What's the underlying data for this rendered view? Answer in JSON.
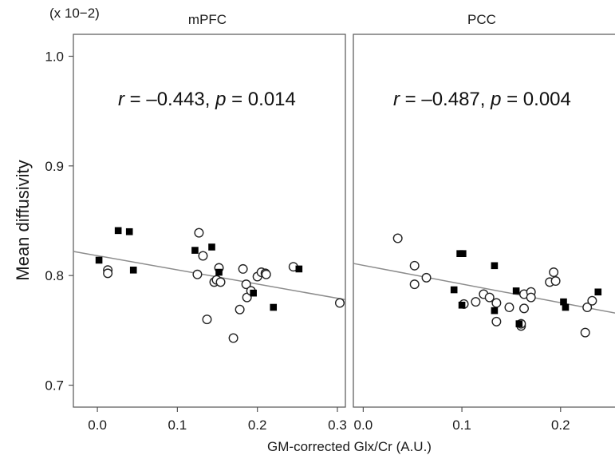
{
  "chart_data": {
    "type": "scatter",
    "ylabel": "Mean diffusivity",
    "xlabel": "GM-corrected Glx/Cr (A.U.)",
    "y_multiplier": "(x 10−2)",
    "ylim": [
      0.68,
      1.02
    ],
    "yticks": [
      0.7,
      0.8,
      0.9,
      1.0
    ],
    "ytick_labels": [
      "0.7",
      "0.8",
      "0.9",
      "1.0"
    ],
    "grid": false,
    "legend": "none",
    "colors": {
      "open": "#222222",
      "filled": "#000000",
      "fit_line": "#8c8c8c"
    },
    "panels": [
      {
        "title": "mPFC",
        "xlim": [
          -0.03,
          0.31
        ],
        "xticks": [
          0.0,
          0.1,
          0.2,
          0.3
        ],
        "xtick_labels": [
          "0.0",
          "0.1",
          "0.2",
          "0.3"
        ],
        "annotation": {
          "r_label": "r",
          "r_value": " = –0.443, ",
          "p_label": "p",
          "p_value": " = 0.014"
        },
        "fit_line": {
          "x": [
            -0.03,
            0.31
          ],
          "y": [
            0.822,
            0.778
          ]
        },
        "series": [
          {
            "marker": "open-circle",
            "points": [
              [
                0.013,
                0.805
              ],
              [
                0.013,
                0.802
              ],
              [
                0.125,
                0.801
              ],
              [
                0.127,
                0.839
              ],
              [
                0.132,
                0.818
              ],
              [
                0.137,
                0.76
              ],
              [
                0.146,
                0.794
              ],
              [
                0.149,
                0.796
              ],
              [
                0.152,
                0.807
              ],
              [
                0.154,
                0.794
              ],
              [
                0.17,
                0.743
              ],
              [
                0.178,
                0.769
              ],
              [
                0.182,
                0.806
              ],
              [
                0.186,
                0.792
              ],
              [
                0.187,
                0.78
              ],
              [
                0.192,
                0.786
              ],
              [
                0.2,
                0.799
              ],
              [
                0.205,
                0.803
              ],
              [
                0.21,
                0.802
              ],
              [
                0.211,
                0.801
              ],
              [
                0.245,
                0.808
              ],
              [
                0.303,
                0.775
              ]
            ]
          },
          {
            "marker": "filled-square",
            "points": [
              [
                0.002,
                0.814
              ],
              [
                0.026,
                0.841
              ],
              [
                0.04,
                0.84
              ],
              [
                0.045,
                0.805
              ],
              [
                0.122,
                0.823
              ],
              [
                0.143,
                0.826
              ],
              [
                0.152,
                0.803
              ],
              [
                0.195,
                0.784
              ],
              [
                0.22,
                0.771
              ],
              [
                0.252,
                0.806
              ]
            ]
          }
        ]
      },
      {
        "title": "PCC",
        "xlim": [
          -0.01,
          0.26
        ],
        "xticks": [
          0.0,
          0.1,
          0.2
        ],
        "xtick_labels": [
          "0.0",
          "0.1",
          "0.2"
        ],
        "annotation": {
          "r_label": "r",
          "r_value": " = –0.487, ",
          "p_label": "p",
          "p_value": " = 0.004"
        },
        "fit_line": {
          "x": [
            -0.01,
            0.26
          ],
          "y": [
            0.811,
            0.765
          ]
        },
        "series": [
          {
            "marker": "open-circle",
            "points": [
              [
                0.035,
                0.834
              ],
              [
                0.052,
                0.809
              ],
              [
                0.052,
                0.792
              ],
              [
                0.064,
                0.798
              ],
              [
                0.102,
                0.774
              ],
              [
                0.114,
                0.776
              ],
              [
                0.122,
                0.783
              ],
              [
                0.128,
                0.78
              ],
              [
                0.135,
                0.775
              ],
              [
                0.135,
                0.758
              ],
              [
                0.148,
                0.771
              ],
              [
                0.16,
                0.754
              ],
              [
                0.16,
                0.756
              ],
              [
                0.163,
                0.783
              ],
              [
                0.163,
                0.77
              ],
              [
                0.17,
                0.785
              ],
              [
                0.17,
                0.78
              ],
              [
                0.189,
                0.794
              ],
              [
                0.193,
                0.803
              ],
              [
                0.195,
                0.795
              ],
              [
                0.225,
                0.748
              ],
              [
                0.227,
                0.771
              ],
              [
                0.232,
                0.777
              ]
            ]
          },
          {
            "marker": "filled-square",
            "points": [
              [
                0.092,
                0.787
              ],
              [
                0.098,
                0.82
              ],
              [
                0.101,
                0.82
              ],
              [
                0.1,
                0.773
              ],
              [
                0.133,
                0.809
              ],
              [
                0.133,
                0.768
              ],
              [
                0.155,
                0.786
              ],
              [
                0.158,
                0.756
              ],
              [
                0.203,
                0.776
              ],
              [
                0.205,
                0.771
              ],
              [
                0.238,
                0.785
              ]
            ]
          }
        ]
      }
    ]
  }
}
